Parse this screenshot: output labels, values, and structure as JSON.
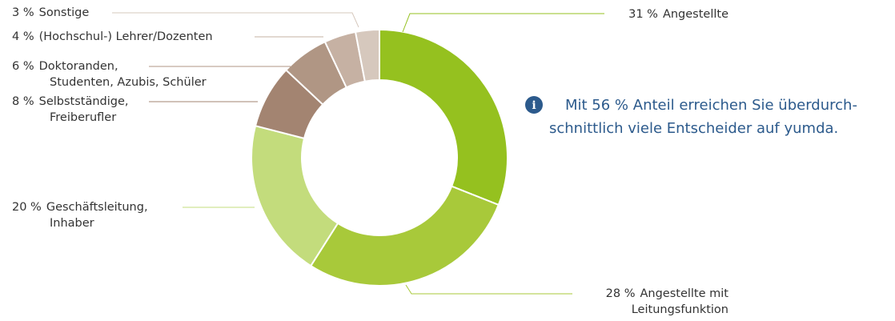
{
  "chart_data": {
    "type": "donut",
    "categories": [
      [
        "Angestellte"
      ],
      [
        "Angestellte mit",
        "Leitungsfunktion"
      ],
      [
        "Geschäftsleitung,",
        "Inhaber"
      ],
      [
        "Selbstständige,",
        "Freiberufler"
      ],
      [
        "Doktoranden,",
        "Studenten, Azubis, Schüler"
      ],
      [
        "(Hochschul-) Lehrer/Dozenten"
      ],
      [
        "Sonstige"
      ]
    ],
    "values": [
      31,
      28,
      20,
      8,
      6,
      4,
      3
    ],
    "value_labels": [
      "31 %",
      "28 %",
      "20 %",
      "8 %",
      "6 %",
      "4 %",
      "3 %"
    ],
    "colors": [
      "#95c11f",
      "#a8c93a",
      "#c3dc7c",
      "#a38471",
      "#b09684",
      "#c6b1a3",
      "#d6c8bd"
    ],
    "annotation": {
      "icon": "i",
      "lines": [
        "Mit 56 % Anteil erreichen Sie überdurch-",
        "schnittlich viele Entscheider auf yumda."
      ]
    }
  }
}
